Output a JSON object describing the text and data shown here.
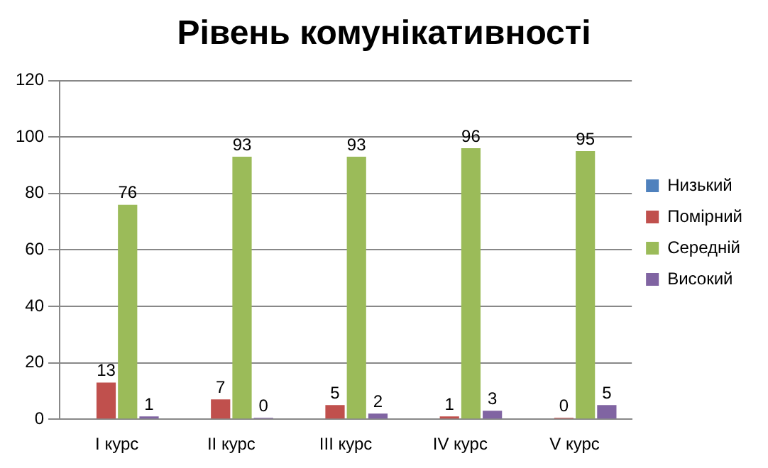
{
  "chart_data": {
    "type": "bar",
    "title": "Рівень комунікативності",
    "categories": [
      "I курс",
      "II курс",
      "III курс",
      "IV курс",
      "V курс"
    ],
    "series": [
      {
        "name": "Низький",
        "color": "#4f81bd",
        "values": [
          null,
          null,
          null,
          null,
          null
        ]
      },
      {
        "name": "Помірний",
        "color": "#c0504d",
        "values": [
          13,
          7,
          5,
          1,
          0
        ]
      },
      {
        "name": "Середній",
        "color": "#9bbb59",
        "values": [
          76,
          93,
          93,
          96,
          95
        ]
      },
      {
        "name": "Високий",
        "color": "#8064a2",
        "values": [
          1,
          0,
          2,
          3,
          5
        ]
      }
    ],
    "ylim": [
      0,
      120
    ],
    "yticks": [
      0,
      20,
      40,
      60,
      80,
      100,
      120
    ],
    "grid": "y",
    "legend": "right",
    "data_labels": true
  }
}
